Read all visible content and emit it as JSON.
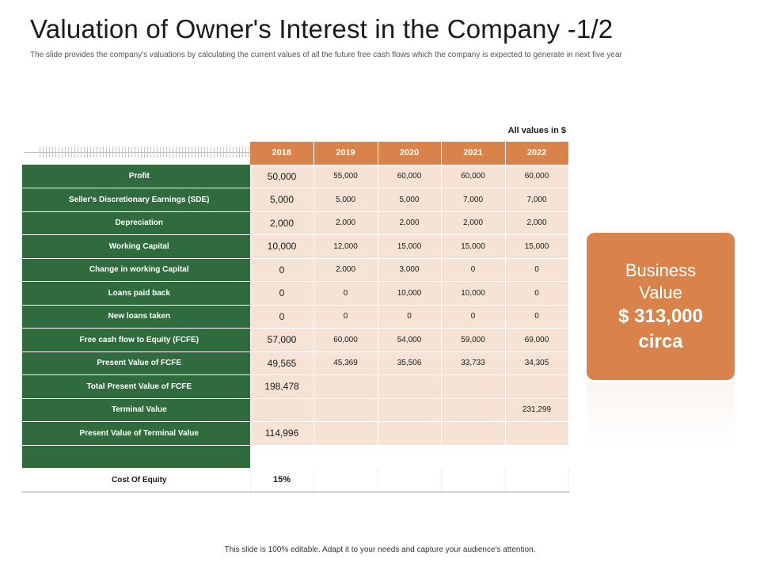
{
  "header": {
    "title": "Valuation of Owner's Interest in the Company -1/2",
    "subtitle": "The slide provides the company's valuations by calculating the current values of all the future free cash flows which the company is expected to generate in next five year"
  },
  "table": {
    "units_note": "All values in $",
    "years": [
      "2018",
      "2019",
      "2020",
      "2021",
      "2022"
    ],
    "rows": [
      {
        "label": "Profit",
        "values": [
          "50,000",
          "55,000",
          "60,000",
          "60,000",
          "60,000"
        ]
      },
      {
        "label": "Seller's Discretionary Earnings (SDE)",
        "values": [
          "5,000",
          "5,000",
          "5,000",
          "7,000",
          "7,000"
        ]
      },
      {
        "label": "Depreciation",
        "values": [
          "2,000",
          "2,000",
          "2,000",
          "2,000",
          "2,000"
        ]
      },
      {
        "label": "Working Capital",
        "values": [
          "10,000",
          "12,000",
          "15,000",
          "15,000",
          "15,000"
        ]
      },
      {
        "label": "Change in working Capital",
        "values": [
          "0",
          "2,000",
          "3,000",
          "0",
          "0"
        ]
      },
      {
        "label": "Loans paid back",
        "values": [
          "0",
          "0",
          "10,000",
          "10,000",
          "0"
        ]
      },
      {
        "label": "New loans taken",
        "values": [
          "0",
          "0",
          "0",
          "0",
          "0"
        ]
      },
      {
        "label": "Free cash flow to Equity (FCFE)",
        "values": [
          "57,000",
          "60,000",
          "54,000",
          "59,000",
          "69,000"
        ]
      },
      {
        "label": "Present Value of FCFE",
        "values": [
          "49,565",
          "45,369",
          "35,506",
          "33,733",
          "34,305"
        ]
      },
      {
        "label": "Total Present Value of FCFE",
        "values": [
          "198,478",
          "",
          "",
          "",
          ""
        ]
      },
      {
        "label": "Terminal Value",
        "values": [
          "",
          "",
          "",
          "",
          "231,299"
        ]
      },
      {
        "label": "Present Value of Terminal Value",
        "values": [
          "114,996",
          "",
          "",
          "",
          ""
        ]
      }
    ],
    "cost_of_equity": {
      "label": "Cost Of Equity",
      "value": "15%"
    }
  },
  "business_value": {
    "label": "Business Value",
    "amount": "$ 313,000",
    "qualifier": "circa"
  },
  "footer": {
    "note": "This slide is 100% editable. Adapt it to your needs and capture your audience's attention."
  },
  "colors": {
    "accent_orange": "#d9824a",
    "label_green": "#2f6b3c",
    "cell_peach": "#f7e3d5"
  }
}
